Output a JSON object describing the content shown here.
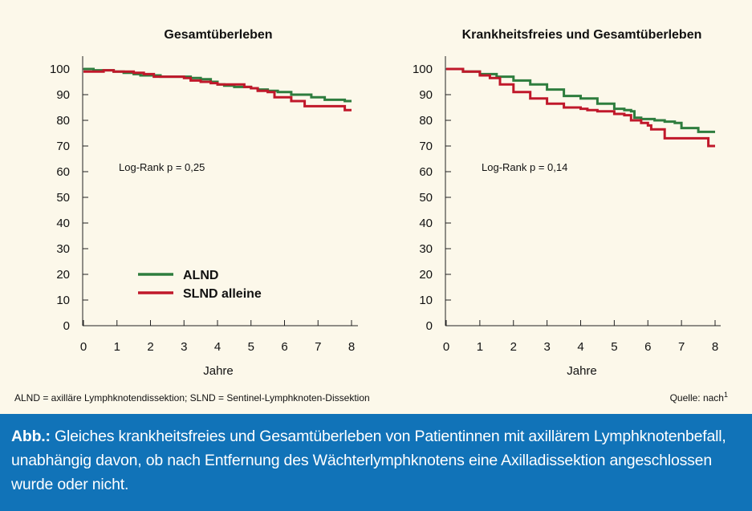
{
  "chart_data": [
    {
      "type": "line",
      "title": "Gesamtüberleben",
      "xlabel": "Jahre",
      "ylabel": "",
      "xlim": [
        0,
        8
      ],
      "ylim": [
        0,
        100
      ],
      "xticks": [
        "0",
        "1",
        "2",
        "3",
        "4",
        "5",
        "6",
        "7",
        "8"
      ],
      "yticks": [
        "0",
        "10",
        "20",
        "30",
        "40",
        "50",
        "60",
        "70",
        "80",
        "90",
        "100"
      ],
      "annotation": "Log-Rank p = 0,25",
      "legend": "inside-lower-left",
      "series": [
        {
          "name": "ALND",
          "color": "#2e7d3e",
          "x": [
            0,
            0.3,
            0.6,
            0.9,
            1.2,
            1.5,
            1.7,
            2.0,
            2.3,
            2.6,
            2.9,
            3.2,
            3.5,
            3.8,
            4.0,
            4.2,
            4.5,
            4.8,
            5.0,
            5.2,
            5.5,
            5.8,
            6.0,
            6.2,
            6.5,
            6.8,
            7.0,
            7.2,
            7.5,
            7.8,
            8.0
          ],
          "y": [
            100,
            99.5,
            99.5,
            99,
            98.5,
            98,
            97.5,
            97.5,
            97,
            97,
            97,
            96.5,
            96,
            95,
            94,
            93.5,
            93,
            93,
            92.5,
            92,
            91.5,
            91,
            91,
            90,
            90,
            89,
            89,
            88,
            88,
            87.5,
            87.5
          ]
        },
        {
          "name": "SLND alleine",
          "color": "#c0182a",
          "x": [
            0,
            0.3,
            0.6,
            0.9,
            1.2,
            1.5,
            1.8,
            2.1,
            2.4,
            2.7,
            3.0,
            3.2,
            3.5,
            3.8,
            4.0,
            4.3,
            4.6,
            4.8,
            5.0,
            5.2,
            5.5,
            5.7,
            5.9,
            6.0,
            6.2,
            6.4,
            6.6,
            6.8,
            7.0,
            7.3,
            7.6,
            7.8,
            8.0
          ],
          "y": [
            99,
            99,
            99.5,
            99,
            99,
            98.5,
            98,
            97,
            97,
            97,
            96.5,
            95.5,
            95,
            94.5,
            94,
            94,
            94,
            93,
            92.5,
            91.5,
            91,
            89,
            89,
            89,
            87.5,
            87.5,
            85.5,
            85.5,
            85.5,
            85.5,
            85.5,
            84,
            84
          ]
        }
      ]
    },
    {
      "type": "line",
      "title": "Krankheitsfreies und Gesamtüberleben",
      "xlabel": "Jahre",
      "ylabel": "",
      "xlim": [
        0,
        8
      ],
      "ylim": [
        0,
        100
      ],
      "xticks": [
        "0",
        "1",
        "2",
        "3",
        "4",
        "5",
        "6",
        "7",
        "8"
      ],
      "yticks": [
        "0",
        "10",
        "20",
        "30",
        "40",
        "50",
        "60",
        "70",
        "80",
        "90",
        "100"
      ],
      "annotation": "Log-Rank p = 0,14",
      "series": [
        {
          "name": "ALND",
          "color": "#2e7d3e",
          "x": [
            0,
            0.5,
            1.0,
            1.5,
            2.0,
            2.5,
            3.0,
            3.5,
            4.0,
            4.5,
            5.0,
            5.3,
            5.5,
            5.6,
            5.8,
            6.0,
            6.2,
            6.5,
            6.8,
            7.0,
            7.2,
            7.5,
            7.8,
            8.0
          ],
          "y": [
            100,
            99,
            98,
            97,
            95.5,
            94,
            92,
            89.5,
            88.5,
            86.5,
            84.5,
            84,
            83.5,
            81,
            80.5,
            80.5,
            80,
            79.5,
            79,
            77,
            77,
            75.5,
            75.5,
            75.5
          ]
        },
        {
          "name": "SLND alleine",
          "color": "#c0182a",
          "x": [
            0,
            0.5,
            1.0,
            1.3,
            1.6,
            2.0,
            2.5,
            3.0,
            3.5,
            4.0,
            4.2,
            4.5,
            4.8,
            5.0,
            5.3,
            5.5,
            5.8,
            6.0,
            6.1,
            6.3,
            6.5,
            6.6,
            6.8,
            7.0,
            7.3,
            7.6,
            7.8,
            8.0
          ],
          "y": [
            100,
            99,
            97.5,
            96.5,
            94,
            91,
            88.5,
            86.5,
            85,
            84.5,
            84,
            83.5,
            83.5,
            82.5,
            82,
            80,
            79,
            78,
            76.5,
            76.5,
            73,
            73,
            73,
            73,
            73,
            73,
            70,
            70
          ]
        }
      ]
    }
  ],
  "legend": {
    "alnd_label": "ALND",
    "slnd_label": "SLND alleine",
    "alnd_color": "#2e7d3e",
    "slnd_color": "#c0182a"
  },
  "footnote": {
    "left": "ALND = axilläre Lymphknotendissektion; SLND = Sentinel-Lymphknoten-Dissektion",
    "right": "Quelle: nach",
    "right_superscript": "1"
  },
  "caption": {
    "lead": "Abb.:",
    "text": " Gleiches krankheitsfreies und Gesamtüberleben von Patientinnen mit axillärem Lymphknotenbefall, unabhängig davon, ob nach Entfernung des Wächterlymphknotens eine Axilladissektion angeschlossen wurde oder nicht."
  }
}
